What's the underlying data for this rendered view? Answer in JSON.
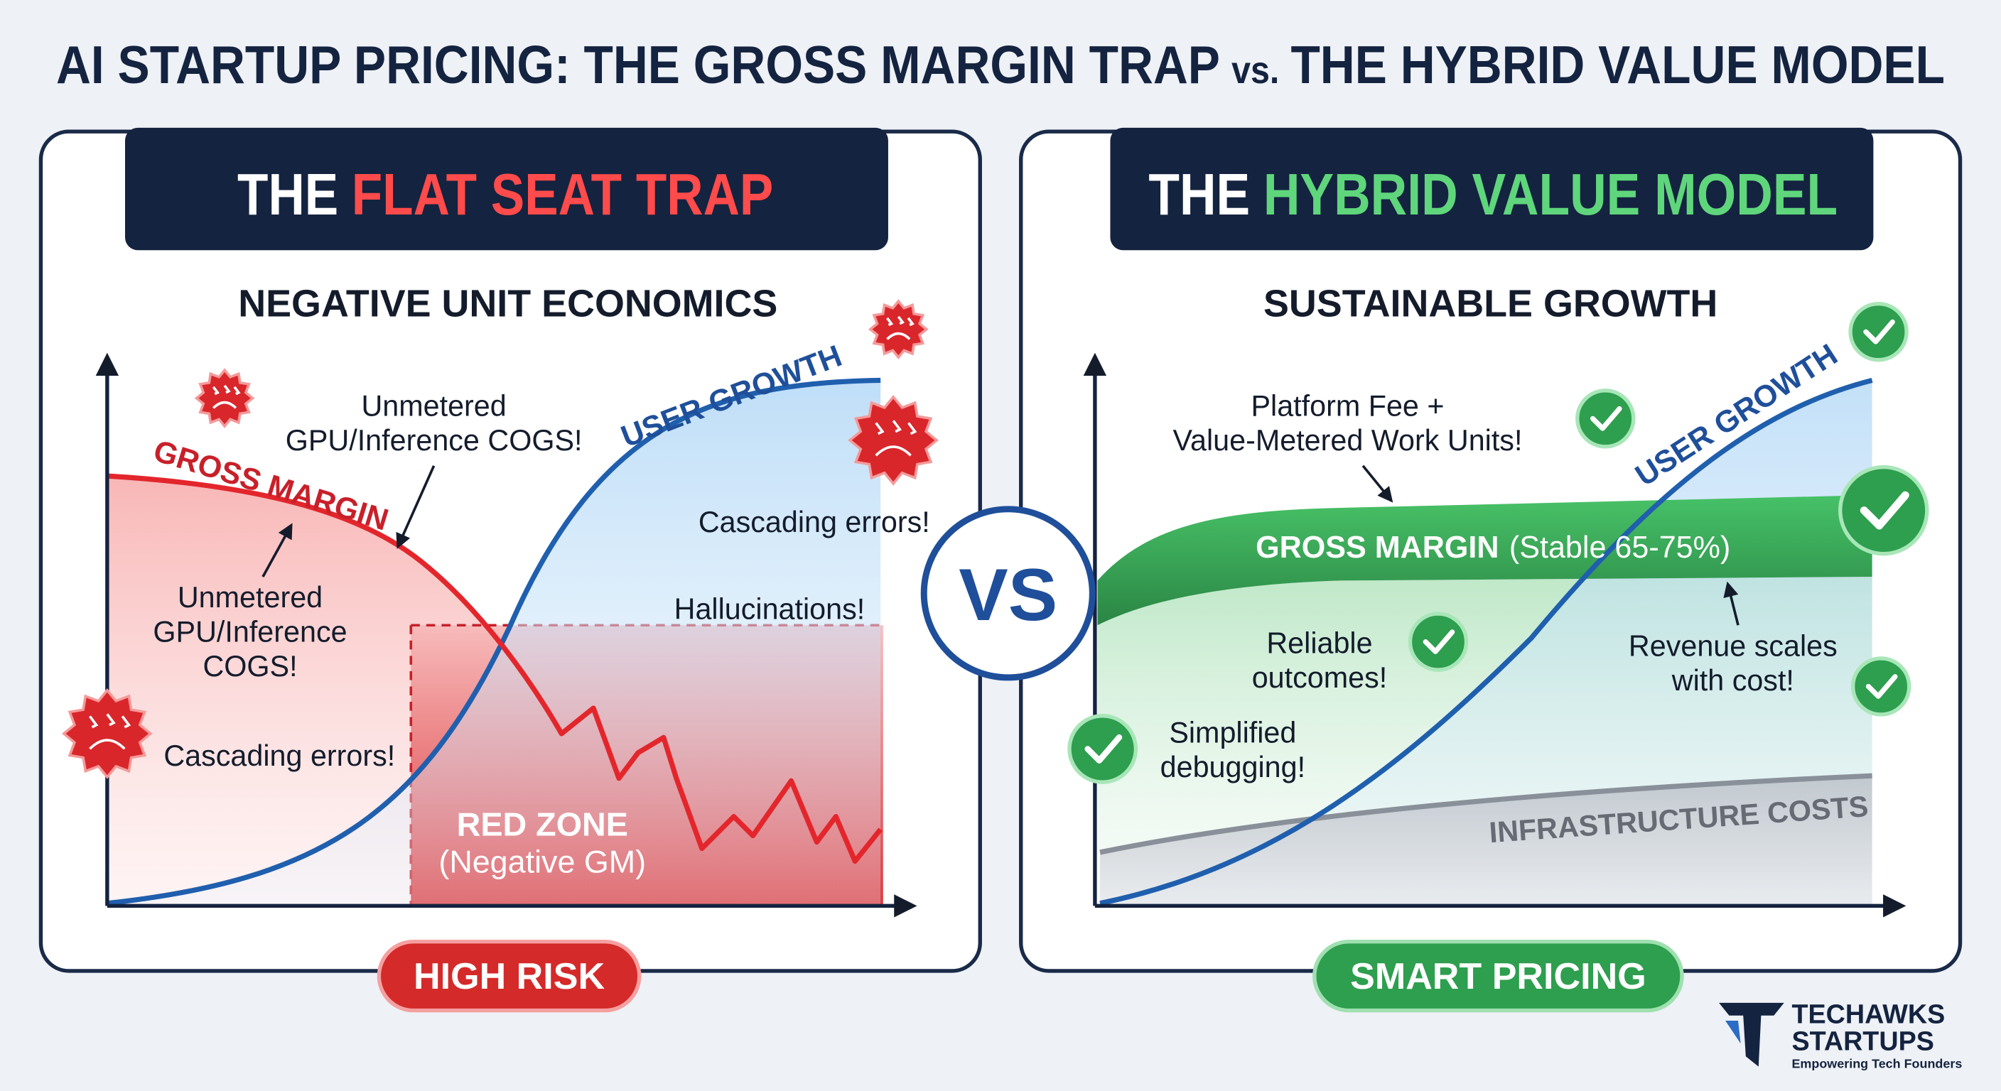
{
  "header": {
    "title_left": "AI STARTUP PRICING: THE GROSS MARGIN TRAP",
    "title_vs": "vs.",
    "title_right": "THE HYBRID VALUE MODEL"
  },
  "left_panel": {
    "banner_prefix": "THE",
    "banner_highlight": "FLAT SEAT TRAP",
    "subtitle": "NEGATIVE UNIT ECONOMICS",
    "gross_margin_label": "GROSS MARGIN",
    "user_growth_label": "USER GROWTH",
    "callout_top": [
      "Unmetered",
      "GPU/Inference COGS!"
    ],
    "callout_left": [
      "Unmetered",
      "GPU/Inference",
      "COGS!"
    ],
    "cascading_errors_right": "Cascading errors!",
    "cascading_errors_left": "Cascading errors!",
    "hallucinations": "Hallucinations!",
    "red_zone": [
      "RED ZONE",
      "(Negative GM)"
    ],
    "badge": "HIGH RISK"
  },
  "vs": "VS",
  "right_panel": {
    "banner_prefix": "THE",
    "banner_highlight": "HYBRID VALUE MODEL",
    "subtitle": "SUSTAINABLE GROWTH",
    "callout_top": [
      "Platform Fee +",
      "Value-Metered Work Units!"
    ],
    "user_growth_label": "USER GROWTH",
    "gross_margin_label": "GROSS MARGIN",
    "gross_margin_note": "(Stable 65-75%)",
    "reliable": [
      "Reliable",
      "outcomes!"
    ],
    "revenue": [
      "Revenue scales",
      "with cost!"
    ],
    "debugging": [
      "Simplified",
      "debugging!"
    ],
    "infrastructure_label": "INFRASTRUCTURE COSTS",
    "badge": "SMART PRICING"
  },
  "logo": {
    "line1": "TECHAWKS",
    "line2": "STARTUPS",
    "tagline": "Empowering Tech Founders"
  }
}
